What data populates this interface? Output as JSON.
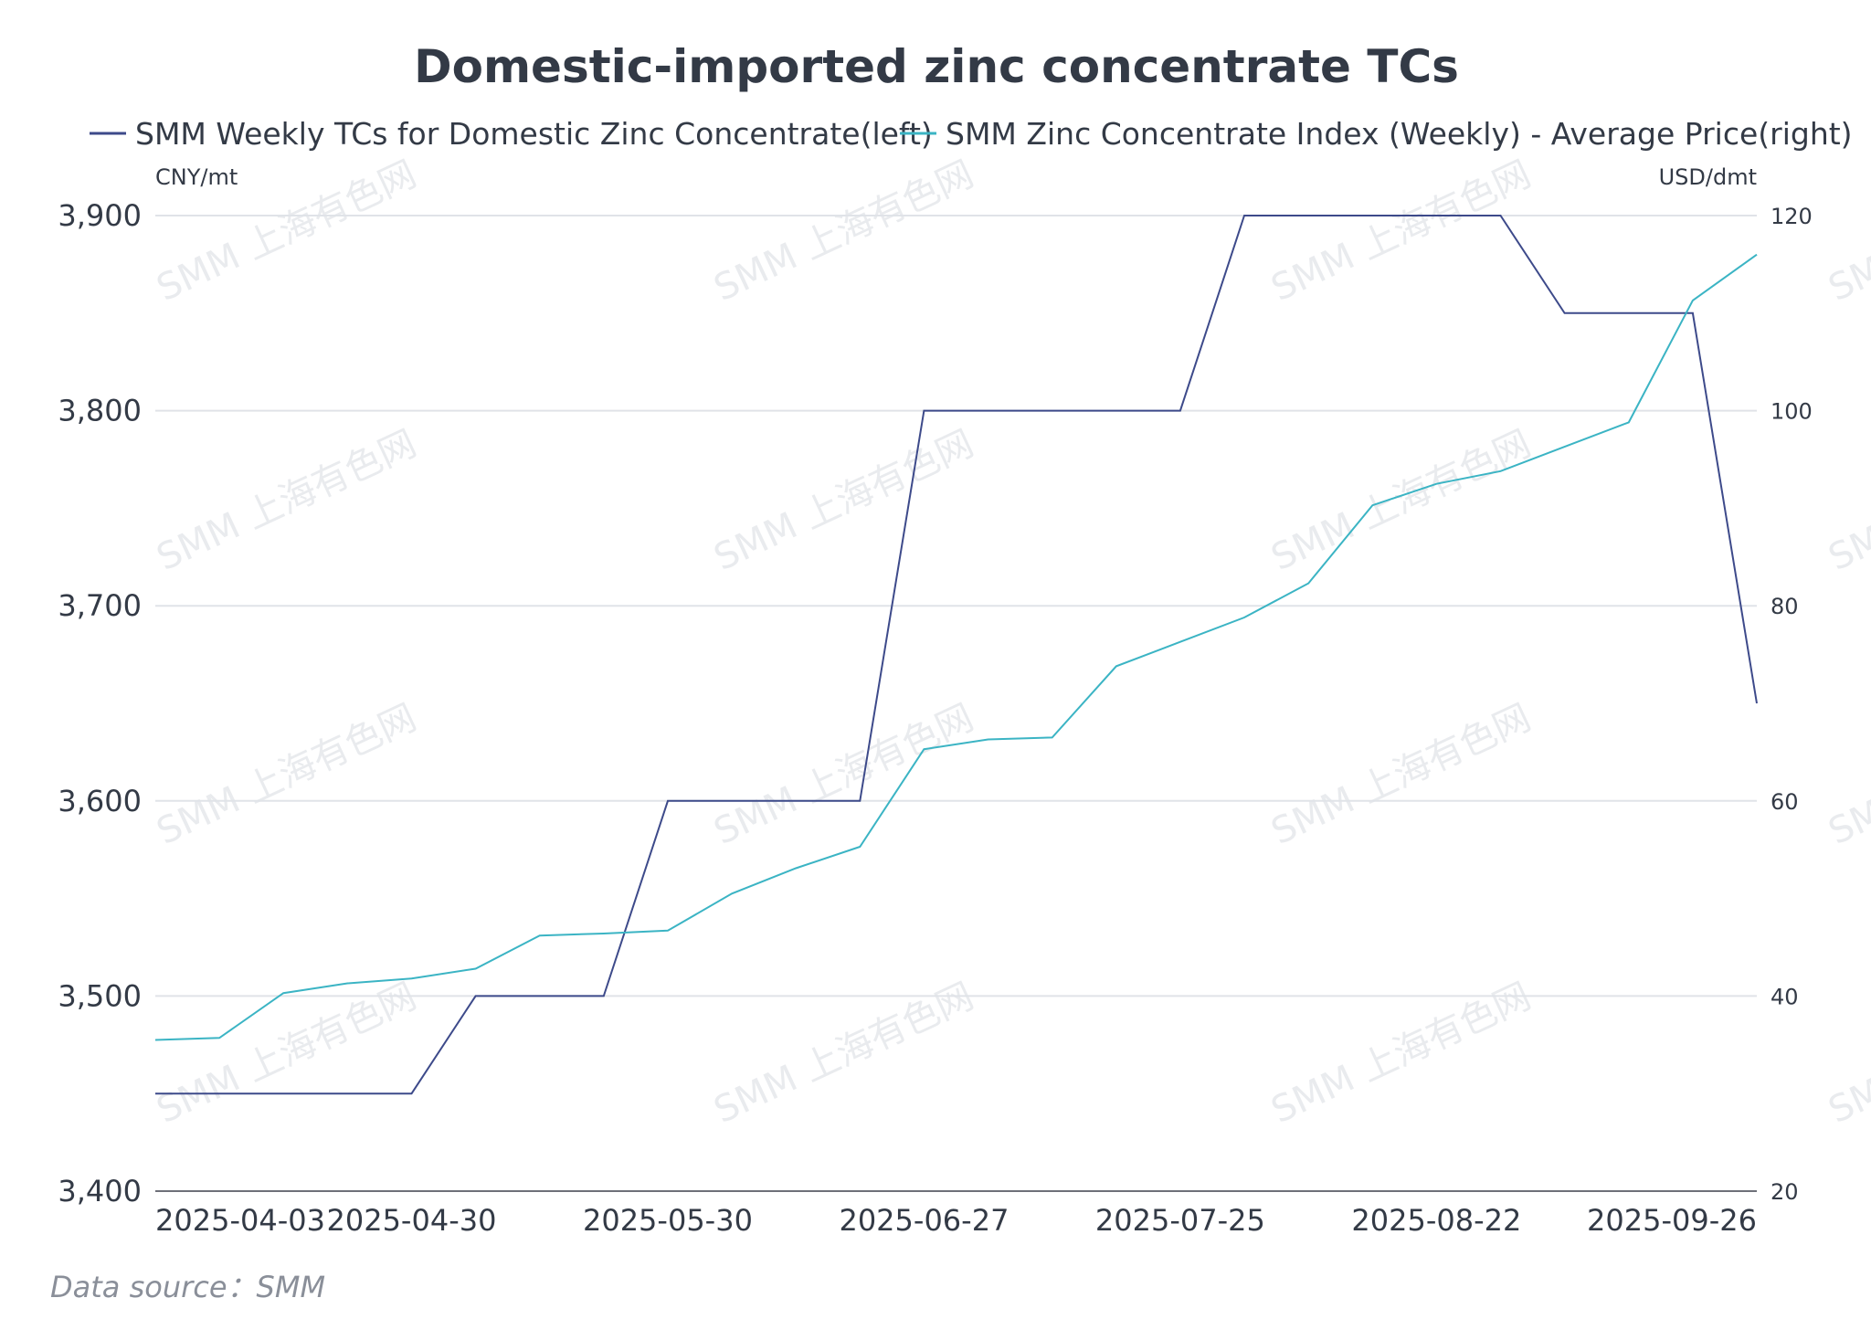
{
  "chart_data": {
    "type": "line",
    "title": "Domestic-imported zinc concentrate TCs",
    "source": "Data source：SMM",
    "watermark": "SMM 上海有色网",
    "left_unit": "CNY/mt",
    "right_unit": "USD/dmt",
    "left_ylim": [
      3400,
      3900
    ],
    "left_ticks": [
      3400,
      3500,
      3600,
      3700,
      3800,
      3900
    ],
    "left_tick_labels": [
      "3,400",
      "3,500",
      "3,600",
      "3,700",
      "3,800",
      "3,900"
    ],
    "right_ylim": [
      20,
      120
    ],
    "right_ticks": [
      20,
      40,
      60,
      80,
      100,
      120
    ],
    "right_tick_labels": [
      "20",
      "40",
      "60",
      "80",
      "100",
      "120"
    ],
    "grid": true,
    "legend_position": "top",
    "x": [
      "2025-04-03",
      "2025-04-11",
      "2025-04-18",
      "2025-04-25",
      "2025-04-30",
      "2025-05-09",
      "2025-05-16",
      "2025-05-23",
      "2025-05-30",
      "2025-06-06",
      "2025-06-13",
      "2025-06-20",
      "2025-06-27",
      "2025-07-04",
      "2025-07-11",
      "2025-07-18",
      "2025-07-25",
      "2025-08-01",
      "2025-08-08",
      "2025-08-15",
      "2025-08-22",
      "2025-08-29",
      "2025-09-05",
      "2025-09-12",
      "2025-09-19",
      "2025-09-26"
    ],
    "x_tick_labels": [
      {
        "index": 0,
        "label": "2025-04-03"
      },
      {
        "index": 4,
        "label": "2025-04-30"
      },
      {
        "index": 8,
        "label": "2025-05-30"
      },
      {
        "index": 12,
        "label": "2025-06-27"
      },
      {
        "index": 16,
        "label": "2025-07-25"
      },
      {
        "index": 20,
        "label": "2025-08-22"
      },
      {
        "index": 25,
        "label": "2025-09-26"
      }
    ],
    "series": [
      {
        "name": "SMM Weekly TCs for Domestic Zinc Concentrate(left)",
        "axis": "left",
        "color": "#3d4a8a",
        "values": [
          3450,
          3450,
          3450,
          3450,
          3450,
          3500,
          3500,
          3500,
          3600,
          3600,
          3600,
          3600,
          3800,
          3800,
          3800,
          3800,
          3800,
          3900,
          3900,
          3900,
          3900,
          3900,
          3850,
          3850,
          3850,
          3650
        ]
      },
      {
        "name": "SMM Zinc Concentrate Index (Weekly) - Average Price(right)",
        "axis": "right",
        "color": "#3bb4c4",
        "values": [
          35.5,
          35.7,
          40.3,
          41.3,
          41.8,
          42.8,
          46.2,
          46.4,
          46.7,
          50.5,
          53.1,
          55.3,
          65.3,
          66.3,
          66.5,
          73.8,
          76.3,
          78.8,
          82.3,
          90.3,
          92.5,
          93.8,
          96.3,
          98.8,
          111.3,
          116.0
        ]
      }
    ]
  }
}
